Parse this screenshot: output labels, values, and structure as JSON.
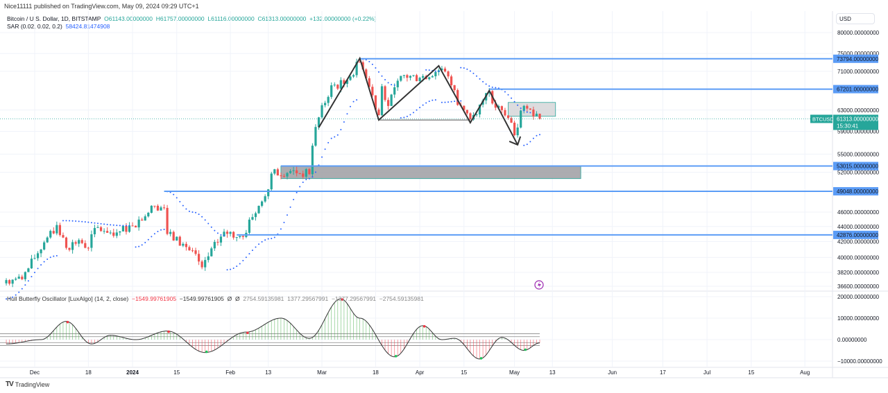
{
  "publisher_line": "Nice11111 published on TradingView.com, May 09, 2024 09:29 UTC+1",
  "legend": {
    "symbol": "Bitcoin / U.S. Dollar, 1D, BITSTAMP",
    "open": "O61143.00000000",
    "high": "H61757.00000000",
    "low": "L61116.00000000",
    "close": "C61313.00000000",
    "change": "+132.00000000 (+0.22%)",
    "sar_label": "SAR (0.02, 0.02, 0.2)",
    "sar_value": "58424.81474908"
  },
  "oscillator_legend": {
    "name": "Hull Butterfly Oscillator [LuxAlgo] (14, 2, close)",
    "v1": "−1549.99761905",
    "v2": "−1549.99761905",
    "v3": "Ø",
    "v4": "Ø",
    "v5": "2754.59135981",
    "v6": "1377.29567991",
    "v7": "−1377.29567991",
    "v8": "−2754.59135981"
  },
  "currency": "USD",
  "ticker_label": "BTCUSD",
  "last_price": "61313.00000000",
  "countdown": "15:30:41",
  "footer_brand": "TradingView",
  "colors": {
    "up": "#26a69a",
    "down": "#ef5350",
    "level": "#5b9cf6",
    "sar": "#2962ff",
    "accent": "#9c27b0"
  },
  "chart_data": [
    {
      "type": "candlestick",
      "title": "Bitcoin / U.S. Dollar, 1D, BITSTAMP",
      "scale": "log",
      "ylim": [
        36000,
        82000
      ],
      "price_ticks": [
        "80000.00000000",
        "75000.00000000",
        "71000.00000000",
        "63000.00000000",
        "59000.00000000",
        "55000.00000000",
        "52000.00000000",
        "46000.00000000",
        "44000.00000000",
        "42000.00000000",
        "40000.00000000",
        "38200.00000000",
        "36600.00000000"
      ],
      "close_anchors": [
        [
          "2023-11-22",
          37300
        ],
        [
          "2023-11-27",
          37400
        ],
        [
          "2023-12-04",
          41900
        ],
        [
          "2023-12-08",
          44200
        ],
        [
          "2023-12-11",
          41200
        ],
        [
          "2023-12-15",
          42200
        ],
        [
          "2023-12-18",
          41200
        ],
        [
          "2023-12-20",
          43800
        ],
        [
          "2023-12-27",
          43200
        ],
        [
          "2024-01-01",
          44100
        ],
        [
          "2024-01-08",
          46900
        ],
        [
          "2024-01-11",
          46600
        ],
        [
          "2024-01-12",
          43000
        ],
        [
          "2024-01-18",
          41300
        ],
        [
          "2024-01-22",
          39500
        ],
        [
          "2024-01-23",
          38800
        ],
        [
          "2024-01-30",
          43300
        ],
        [
          "2024-02-05",
          42600
        ],
        [
          "2024-02-08",
          45300
        ],
        [
          "2024-02-12",
          48300
        ],
        [
          "2024-02-14",
          51800
        ],
        [
          "2024-02-20",
          52200
        ],
        [
          "2024-02-26",
          51700
        ],
        [
          "2024-02-28",
          59800
        ],
        [
          "2024-03-04",
          68000
        ],
        [
          "2024-03-08",
          68300
        ],
        [
          "2024-03-13",
          73000
        ],
        [
          "2024-03-14",
          71400
        ],
        [
          "2024-03-19",
          62000
        ],
        [
          "2024-03-20",
          67800
        ],
        [
          "2024-03-22",
          63800
        ],
        [
          "2024-03-26",
          70000
        ],
        [
          "2024-04-01",
          69600
        ],
        [
          "2024-04-08",
          71600
        ],
        [
          "2024-04-12",
          67000
        ],
        [
          "2024-04-13",
          64000
        ],
        [
          "2024-04-17",
          61200
        ],
        [
          "2024-04-21",
          64900
        ],
        [
          "2024-04-23",
          66800
        ],
        [
          "2024-04-24",
          64300
        ],
        [
          "2024-04-30",
          60600
        ],
        [
          "2024-05-01",
          58300
        ],
        [
          "2024-05-03",
          62900
        ],
        [
          "2024-05-06",
          63100
        ],
        [
          "2024-05-08",
          62300
        ],
        [
          "2024-05-09",
          61313
        ]
      ],
      "sar_segments": [
        [
          [
            "2023-11-22",
            35200
          ],
          [
            "2023-12-08",
            40200
          ]
        ],
        [
          [
            "2023-12-10",
            44800
          ],
          [
            "2023-12-31",
            44100
          ]
        ],
        [
          [
            "2024-01-02",
            41300
          ],
          [
            "2024-01-11",
            43600
          ]
        ],
        [
          [
            "2024-01-12",
            49000
          ],
          [
            "2024-01-20",
            46000
          ],
          [
            "2024-01-30",
            42800
          ]
        ],
        [
          [
            "2024-01-31",
            38500
          ],
          [
            "2024-02-14",
            42400
          ],
          [
            "2024-02-26",
            51000
          ],
          [
            "2024-03-05",
            58000
          ],
          [
            "2024-03-12",
            65000
          ]
        ],
        [
          [
            "2024-03-14",
            73700
          ],
          [
            "2024-03-24",
            68000
          ]
        ],
        [
          [
            "2024-03-26",
            61500
          ],
          [
            "2024-04-06",
            65000
          ]
        ],
        [
          [
            "2024-04-03",
            71300
          ],
          [
            "2024-04-07",
            71000
          ]
        ],
        [
          [
            "2024-04-08",
            64500
          ],
          [
            "2024-04-14",
            64800
          ]
        ],
        [
          [
            "2024-04-14",
            71800
          ],
          [
            "2024-04-25",
            67500
          ],
          [
            "2024-05-06",
            62500
          ]
        ],
        [
          [
            "2024-05-04",
            56500
          ],
          [
            "2024-05-09",
            58400
          ]
        ]
      ],
      "levels": [
        {
          "price": 73794,
          "label": "73794.00000000",
          "from": "2024-03-13"
        },
        {
          "price": 67201,
          "label": "67201.00000000",
          "from": "2024-04-23"
        },
        {
          "price": 53015,
          "label": "53015.00000000",
          "from": "2024-02-17"
        },
        {
          "price": 49048,
          "label": "49048.00000000",
          "from": "2024-01-11"
        },
        {
          "price": 42876,
          "label": "42876.00000000",
          "from": "2024-02-03"
        }
      ],
      "zones": [
        {
          "from": "2024-02-17",
          "to": "2024-05-22",
          "top": 53015,
          "bottom": 51000,
          "color": "#9e9ea2"
        },
        {
          "from": "2024-04-29",
          "to": "2024-05-14",
          "top": 64500,
          "bottom": 61800,
          "color": "#d6d6d8"
        }
      ],
      "zigzag": [
        [
          "2024-02-29",
          59700
        ],
        [
          "2024-03-13",
          73900
        ],
        [
          "2024-03-19",
          61100
        ],
        [
          "2024-04-07",
          72200
        ],
        [
          "2024-04-17",
          60600
        ],
        [
          "2024-04-23",
          66900
        ],
        [
          "2024-05-02",
          56600
        ]
      ],
      "neckline": [
        [
          "2024-03-19",
          61100
        ],
        [
          "2024-04-17",
          61100
        ]
      ]
    },
    {
      "type": "line",
      "title": "Hull Butterfly Oscillator [LuxAlgo] (14, 2, close)",
      "ylim": [
        -12000,
        21000
      ],
      "y_ticks": [
        "20000.00000000",
        "10000.00000000",
        "0.00000000",
        "−10000.00000000"
      ],
      "bands": [
        2754.59,
        1377.3,
        -1377.3,
        -2754.59
      ],
      "anchors": [
        [
          "2023-11-22",
          -2000
        ],
        [
          "2023-12-03",
          0
        ],
        [
          "2023-12-11",
          8500
        ],
        [
          "2023-12-19",
          -2000
        ],
        [
          "2023-12-25",
          2000
        ],
        [
          "2024-01-02",
          0
        ],
        [
          "2024-01-12",
          4000
        ],
        [
          "2024-01-24",
          -6000
        ],
        [
          "2024-02-06",
          3500
        ],
        [
          "2024-02-17",
          10000
        ],
        [
          "2024-02-26",
          600
        ],
        [
          "2024-03-07",
          19000
        ],
        [
          "2024-03-13",
          10000
        ],
        [
          "2024-03-24",
          -8000
        ],
        [
          "2024-04-02",
          6500
        ],
        [
          "2024-04-08",
          0
        ],
        [
          "2024-04-12",
          600
        ],
        [
          "2024-04-20",
          -9000
        ],
        [
          "2024-04-27",
          1000
        ],
        [
          "2024-05-04",
          -5000
        ],
        [
          "2024-05-09",
          -1550
        ]
      ],
      "peak_markers": [
        "2023-12-11",
        "2024-01-12",
        "2024-02-06",
        "2024-03-07",
        "2024-04-02"
      ],
      "trough_markers": [
        "2024-01-24",
        "2024-03-24",
        "2024-04-20",
        "2024-05-04"
      ]
    }
  ],
  "time_axis": [
    {
      "label": "Dec",
      "date": "2023-12-01",
      "bold": false
    },
    {
      "label": "18",
      "date": "2023-12-18",
      "bold": false
    },
    {
      "label": "2024",
      "date": "2024-01-01",
      "bold": true
    },
    {
      "label": "15",
      "date": "2024-01-15",
      "bold": false
    },
    {
      "label": "Feb",
      "date": "2024-02-01",
      "bold": false
    },
    {
      "label": "13",
      "date": "2024-02-13",
      "bold": false
    },
    {
      "label": "Mar",
      "date": "2024-03-01",
      "bold": false
    },
    {
      "label": "18",
      "date": "2024-03-18",
      "bold": false
    },
    {
      "label": "Apr",
      "date": "2024-04-01",
      "bold": false
    },
    {
      "label": "15",
      "date": "2024-04-15",
      "bold": false
    },
    {
      "label": "May",
      "date": "2024-05-01",
      "bold": false
    },
    {
      "label": "13",
      "date": "2024-05-13",
      "bold": false
    },
    {
      "label": "Jun",
      "date": "2024-06-01",
      "bold": false
    },
    {
      "label": "17",
      "date": "2024-06-17",
      "bold": false
    },
    {
      "label": "Jul",
      "date": "2024-07-01",
      "bold": false
    },
    {
      "label": "15",
      "date": "2024-07-15",
      "bold": false
    },
    {
      "label": "Aug",
      "date": "2024-08-01",
      "bold": false
    }
  ]
}
